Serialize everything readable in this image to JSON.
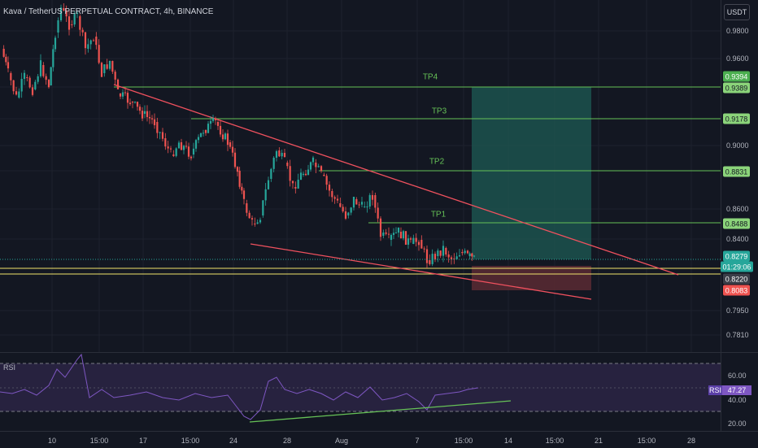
{
  "chart": {
    "title": "Kava / TetherUS PERPETUAL CONTRACT, 4h, BINANCE",
    "currency": "USDT"
  },
  "price_axis": {
    "ticks": [
      "0.9800",
      "0.9600",
      "0.9000",
      "0.8600",
      "0.8400",
      "0.7950",
      "0.7810"
    ]
  },
  "price_labels": {
    "tp4_upper": "0.9394",
    "tp4": "0.9389",
    "tp3": "0.9178",
    "tp2": "0.8831",
    "tp1": "0.8488",
    "current_price": "0.8279",
    "countdown": "01:29:06",
    "support": "0.8220",
    "stop_loss": "0.8083"
  },
  "targets": {
    "tp4": "TP4",
    "tp3": "TP3",
    "tp2": "TP2",
    "tp1": "TP1"
  },
  "rsi": {
    "name": "RSI",
    "badge_label": "RSI",
    "value": "47.27",
    "ticks": [
      "60.00",
      "40.00",
      "20.00"
    ]
  },
  "time_axis": {
    "ticks": [
      "10",
      "15:00",
      "17",
      "15:00",
      "24",
      "28",
      "Aug",
      "7",
      "15:00",
      "14",
      "15:00",
      "21",
      "15:00",
      "28"
    ]
  },
  "colors": {
    "background": "#131722",
    "bull": "#26a69a",
    "bear": "#ef5350",
    "target_line": "#66c157",
    "wedge_line": "#f0515e",
    "support_line": "#f2e36b",
    "profit_zone": "#1e5b54",
    "loss_zone": "#5b2a33",
    "rsi_line": "#7e57c2",
    "rsi_band": "#2a2342"
  }
}
